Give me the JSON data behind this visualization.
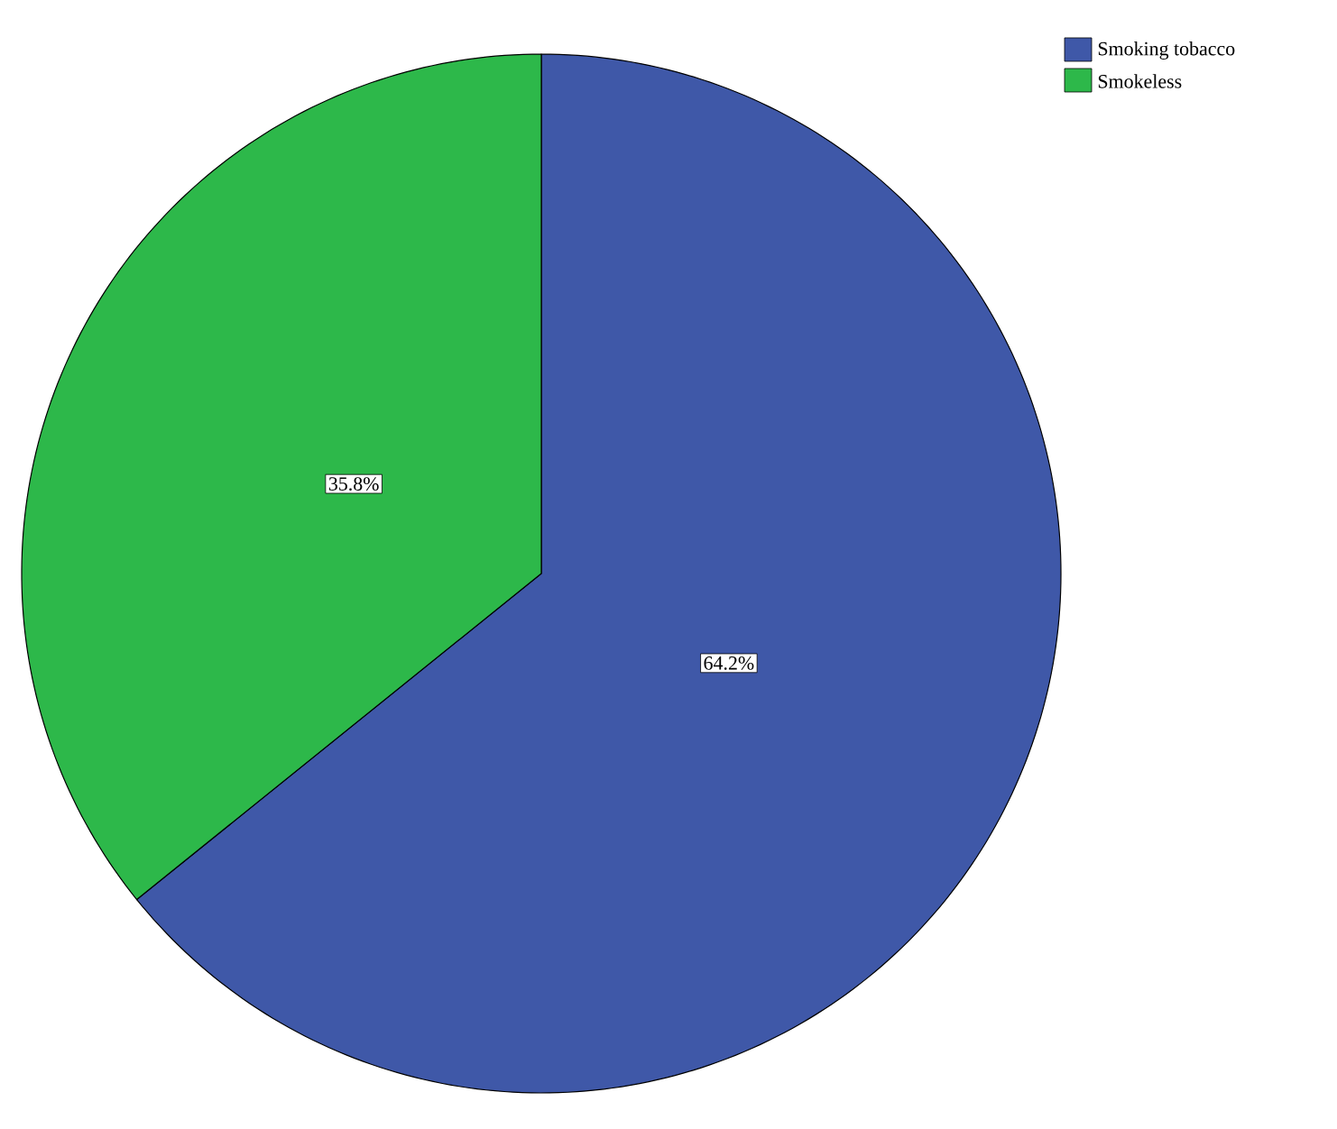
{
  "chart_data": {
    "type": "pie",
    "categories": [
      "Smoking tobacco",
      "Smokeless"
    ],
    "values": [
      64.2,
      35.8
    ],
    "colors": [
      "#3f58a8",
      "#2db84a"
    ],
    "value_labels": [
      "64.2%",
      "35.8%"
    ],
    "legend": "top right"
  }
}
